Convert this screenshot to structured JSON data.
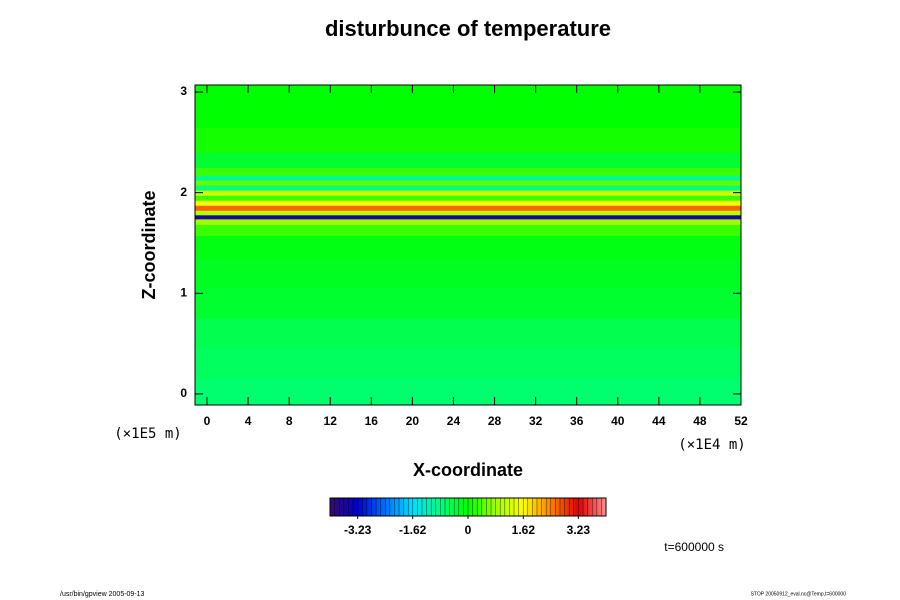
{
  "chart_data": {
    "type": "heatmap-profile",
    "title": "disturbunce of temperature",
    "x_label": "X-coordinate",
    "y_label": "Z-coordinate",
    "x_unit": "(×1E4 m)",
    "y_unit": "(×1E5 m)",
    "xlim": [
      -1.17,
      52
    ],
    "ylim": [
      -0.11,
      3.07
    ],
    "xticks": [
      0,
      4,
      8,
      12,
      16,
      20,
      24,
      28,
      32,
      36,
      40,
      44,
      48,
      52
    ],
    "yticks": [
      0,
      1,
      2,
      3
    ],
    "z": [
      0.0,
      0.3,
      0.6,
      0.9,
      1.2,
      1.5,
      1.65,
      1.72,
      1.76,
      1.8,
      1.85,
      1.9,
      1.95,
      2.0,
      2.05,
      2.1,
      2.15,
      2.2,
      2.3,
      2.5,
      2.8,
      3.05
    ],
    "values": [
      -0.7,
      -0.6,
      -0.5,
      -0.3,
      -0.2,
      -0.1,
      0.3,
      0.8,
      -3.6,
      1.0,
      2.6,
      1.5,
      0.3,
      1.2,
      -0.8,
      0.5,
      -0.9,
      0.3,
      -0.3,
      0.1,
      0.0,
      0.0
    ],
    "clim": [
      -4.04,
      4.04
    ],
    "colormap": [
      "#3a0a6e",
      "#0000c8",
      "#0070ff",
      "#00e0ff",
      "#00ff80",
      "#00ff00",
      "#a0ff00",
      "#ffff00",
      "#ff8000",
      "#e00000",
      "#ff9090"
    ],
    "colorbar_ticks": [
      -3.23,
      -1.62,
      0,
      1.62,
      3.23
    ],
    "time_label": "t=600000 s",
    "footer_left": "/usr/bin/gpview 2005-09-13",
    "footer_right": "STOP 20050912_eval.nc@Temp,t=600000"
  }
}
